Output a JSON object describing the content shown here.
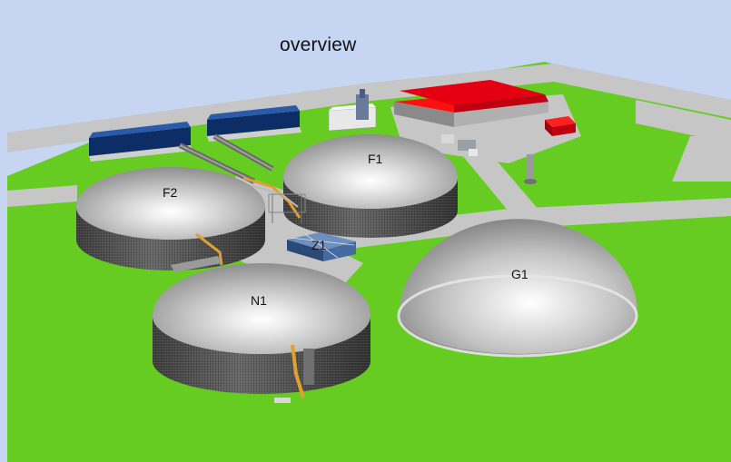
{
  "view": {
    "title": "overview"
  },
  "units": [
    {
      "id": "f1",
      "label": "F1"
    },
    {
      "id": "f2",
      "label": "F2"
    },
    {
      "id": "z1",
      "label": "Z1"
    },
    {
      "id": "n1",
      "label": "N1"
    },
    {
      "id": "g1",
      "label": "G1"
    }
  ],
  "colors": {
    "sky": "#c5d5f2",
    "grass": "#66cc22",
    "road": "#c4c4c4",
    "roof_red": "#e40010",
    "roof_blue": "#123d86",
    "tank_dome": "#bdbdbd",
    "tank_wall": "#4d4d4d",
    "pipe_orange": "#e0a030"
  }
}
